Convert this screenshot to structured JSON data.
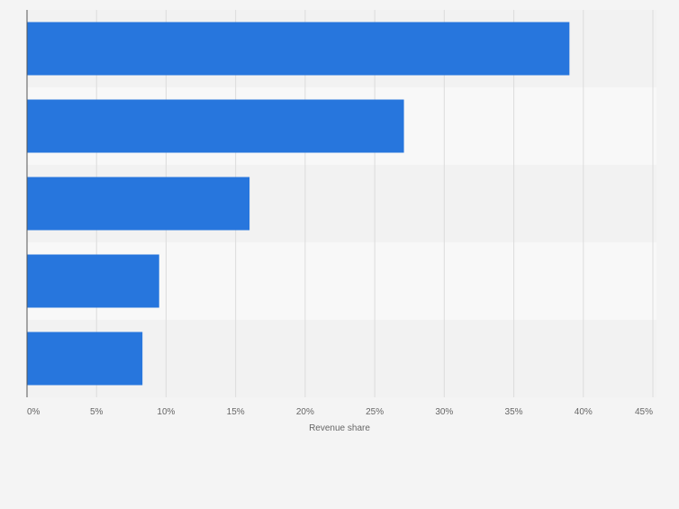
{
  "chart_data": {
    "type": "bar",
    "orientation": "horizontal",
    "categories": [
      "",
      "",
      "",
      "",
      ""
    ],
    "values": [
      39.0,
      27.1,
      16.0,
      9.5,
      8.3
    ],
    "xlabel": "Revenue share",
    "ylabel": "",
    "xlim": [
      0,
      45
    ],
    "x_ticks": [
      0,
      5,
      10,
      15,
      20,
      25,
      30,
      35,
      40,
      45
    ],
    "x_tick_labels": [
      "0%",
      "5%",
      "10%",
      "15%",
      "20%",
      "25%",
      "30%",
      "35%",
      "40%",
      "45%"
    ],
    "grid": true,
    "legend": "none",
    "colors": {
      "bar": "#2776dd",
      "band_dark": "#f2f2f2",
      "band_light": "#f8f8f8",
      "grid": "#dcdcdc",
      "axis": "#555555",
      "tick_label": "#666666"
    }
  }
}
